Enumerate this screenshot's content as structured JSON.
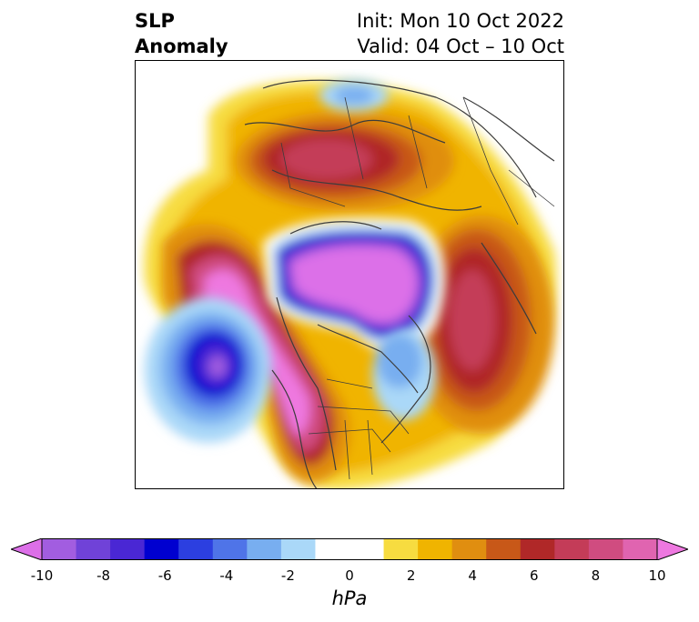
{
  "title": {
    "left_line1": "SLP",
    "left_line2": "Anomaly",
    "right_line1": "Init: Mon 10 Oct 2022",
    "right_line2": "Valid: 04 Oct – 10 Oct"
  },
  "map": {
    "projection": "north-polar-stereographic",
    "regions": [
      {
        "name": "arctic-central-negative",
        "sign": "negative",
        "peak_hpa": -10
      },
      {
        "name": "north-pacific-negative",
        "sign": "negative",
        "peak_hpa": -10
      },
      {
        "name": "western-north-america-positive",
        "sign": "positive",
        "peak_hpa": 10
      },
      {
        "name": "siberia-positive",
        "sign": "positive",
        "peak_hpa": 8
      },
      {
        "name": "north-atlantic-positive",
        "sign": "positive",
        "peak_hpa": 8
      },
      {
        "name": "hudson-bay-negative",
        "sign": "negative",
        "peak_hpa": -4
      }
    ]
  },
  "colorbar": {
    "units": "hPa",
    "colors": [
      "#dc6fe8",
      "#a25de0",
      "#7042d8",
      "#4a27d4",
      "#0000d0",
      "#2c3fe0",
      "#4f74e8",
      "#78aef0",
      "#aad8f8",
      "#ffffff",
      "#ffffff",
      "#f7dc40",
      "#f0b400",
      "#e08e10",
      "#c85818",
      "#b02828",
      "#c43c58",
      "#d04c80",
      "#e064b0",
      "#ee78e0"
    ],
    "ticks": [
      "-10",
      "-8",
      "-6",
      "-4",
      "-2",
      "0",
      "2",
      "4",
      "6",
      "8",
      "10"
    ],
    "extend": "both"
  }
}
